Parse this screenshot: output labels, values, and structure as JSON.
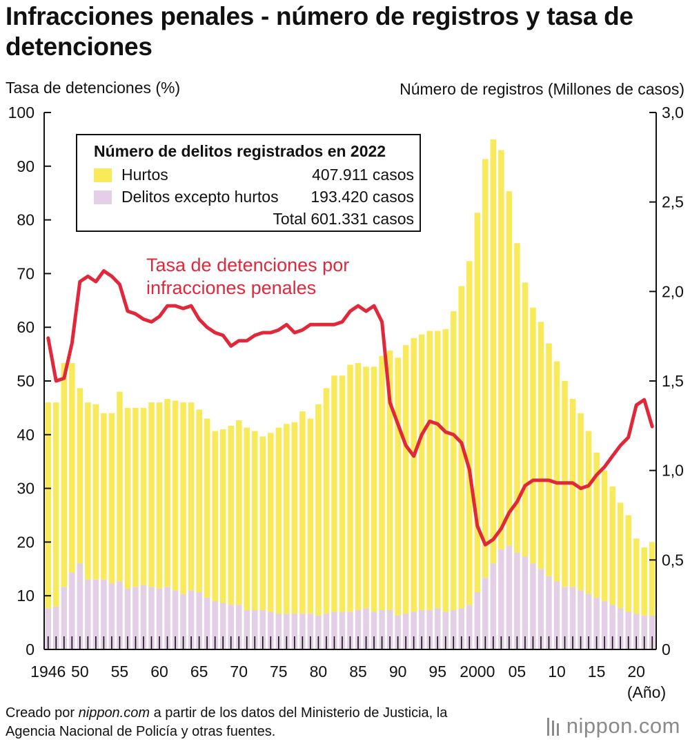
{
  "title": "Infracciones penales - número de registros y tasa de detenciones",
  "y_left_label": "Tasa de detenciones (%)",
  "y_right_label": "Número de registros (Millones de casos)",
  "x_unit_label": "(Año)",
  "legend": {
    "title": "Número de delitos registrados en 2022",
    "items": [
      {
        "label": "Hurtos",
        "value": "407.911 casos",
        "color": "#f8ea5a"
      },
      {
        "label": "Delitos excepto hurtos",
        "value": "193.420 casos",
        "color": "#e3d0e6"
      }
    ],
    "total_label": "Total 601.331 casos"
  },
  "series_label_line1": "Tasa de detenciones por",
  "series_label_line2": "infracciones penales",
  "source_prefix": "Creado por ",
  "source_site": "nippon.com",
  "source_rest": " a partir de los datos del Ministerio de Justicia, la Agencia Nacional de Policía y otras fuentes.",
  "brand": "nippon.com",
  "colors": {
    "hurtos": "#f8ea5a",
    "otros": "#e3d0e6",
    "tasa": "#e0283a"
  },
  "chart_data": {
    "type": "bar",
    "stacked": true,
    "x": [
      1946,
      1947,
      1948,
      1949,
      1950,
      1951,
      1952,
      1953,
      1954,
      1955,
      1956,
      1957,
      1958,
      1959,
      1960,
      1961,
      1962,
      1963,
      1964,
      1965,
      1966,
      1967,
      1968,
      1969,
      1970,
      1971,
      1972,
      1973,
      1974,
      1975,
      1976,
      1977,
      1978,
      1979,
      1980,
      1981,
      1982,
      1983,
      1984,
      1985,
      1986,
      1987,
      1988,
      1989,
      1990,
      1991,
      1992,
      1993,
      1994,
      1995,
      1996,
      1997,
      1998,
      1999,
      2000,
      2001,
      2002,
      2003,
      2004,
      2005,
      2006,
      2007,
      2008,
      2009,
      2010,
      2011,
      2012,
      2013,
      2014,
      2015,
      2016,
      2017,
      2018,
      2019,
      2020,
      2021,
      2022
    ],
    "x_tick_labels": [
      "1946",
      "50",
      "55",
      "60",
      "65",
      "70",
      "75",
      "80",
      "85",
      "90",
      "95",
      "2000",
      "05",
      "10",
      "15",
      "20"
    ],
    "x_tick_years": [
      1946,
      1950,
      1955,
      1960,
      1965,
      1970,
      1975,
      1980,
      1985,
      1990,
      1995,
      2000,
      2005,
      2010,
      2015,
      2020
    ],
    "series": [
      {
        "name": "Delitos excepto hurtos",
        "axis": "right",
        "values": [
          0.23,
          0.24,
          0.35,
          0.43,
          0.48,
          0.39,
          0.39,
          0.39,
          0.37,
          0.38,
          0.34,
          0.35,
          0.36,
          0.35,
          0.34,
          0.35,
          0.33,
          0.31,
          0.33,
          0.32,
          0.29,
          0.27,
          0.26,
          0.25,
          0.25,
          0.22,
          0.22,
          0.22,
          0.21,
          0.2,
          0.2,
          0.2,
          0.2,
          0.2,
          0.19,
          0.2,
          0.21,
          0.21,
          0.21,
          0.22,
          0.23,
          0.21,
          0.22,
          0.22,
          0.19,
          0.2,
          0.21,
          0.22,
          0.22,
          0.23,
          0.21,
          0.22,
          0.23,
          0.25,
          0.32,
          0.4,
          0.48,
          0.56,
          0.58,
          0.54,
          0.52,
          0.48,
          0.45,
          0.41,
          0.38,
          0.35,
          0.35,
          0.33,
          0.31,
          0.29,
          0.27,
          0.25,
          0.23,
          0.21,
          0.2,
          0.19,
          0.19
        ]
      },
      {
        "name": "Hurtos",
        "axis": "right",
        "values": [
          1.15,
          1.14,
          1.25,
          1.17,
          0.98,
          0.99,
          0.98,
          0.93,
          0.95,
          1.06,
          1.01,
          1.0,
          0.99,
          1.03,
          1.04,
          1.05,
          1.06,
          1.07,
          1.05,
          1.02,
          1.0,
          0.95,
          0.97,
          1.0,
          1.03,
          1.02,
          1.0,
          0.97,
          1.0,
          1.04,
          1.06,
          1.07,
          1.13,
          1.09,
          1.18,
          1.26,
          1.32,
          1.32,
          1.38,
          1.38,
          1.35,
          1.37,
          1.42,
          1.45,
          1.44,
          1.5,
          1.53,
          1.54,
          1.56,
          1.55,
          1.58,
          1.67,
          1.8,
          1.92,
          2.12,
          2.34,
          2.37,
          2.23,
          1.98,
          1.73,
          1.53,
          1.43,
          1.38,
          1.3,
          1.23,
          1.15,
          1.05,
          0.99,
          0.91,
          0.81,
          0.73,
          0.66,
          0.59,
          0.54,
          0.42,
          0.38,
          0.41
        ]
      },
      {
        "name": "Tasa de detenciones por infracciones penales",
        "axis": "left",
        "type": "line",
        "values": [
          58,
          50,
          50.5,
          57,
          68.5,
          69.5,
          68.5,
          70.5,
          69.5,
          68,
          63,
          62.5,
          61.5,
          61,
          62,
          64,
          64,
          63.5,
          64,
          61.5,
          60,
          59,
          58.5,
          56.5,
          57.5,
          57.5,
          58.5,
          59,
          59,
          59.5,
          60.5,
          59,
          59.5,
          60.5,
          60.5,
          60.5,
          60.5,
          61,
          63,
          64,
          63,
          64,
          61,
          46,
          42,
          38,
          36,
          40,
          42.5,
          42,
          40.5,
          40,
          38.5,
          33.5,
          23,
          19.5,
          20.5,
          22.5,
          25.5,
          27.5,
          30.5,
          31.5,
          31.5,
          31.5,
          31,
          31,
          31,
          30,
          30.5,
          32.5,
          34,
          36,
          38,
          39.5,
          45.5,
          46.5,
          41.5
        ]
      }
    ],
    "y_left": {
      "label": "Tasa de detenciones (%)",
      "range": [
        0,
        100
      ],
      "ticks": [
        0,
        10,
        20,
        30,
        40,
        50,
        60,
        70,
        80,
        90,
        100
      ]
    },
    "y_right": {
      "label": "Número de registros (Millones de casos)",
      "range": [
        0,
        3.0
      ],
      "ticks": [
        "0",
        "0,5",
        "1,0",
        "1,5",
        "2,0",
        "2,5",
        "3,0"
      ]
    },
    "grid": false,
    "legend_position": "top-left"
  }
}
